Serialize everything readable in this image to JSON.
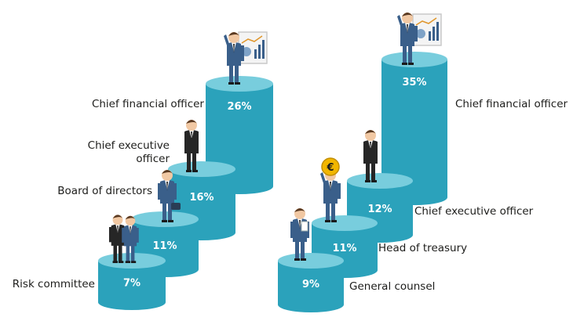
{
  "chart_data": [
    {
      "type": "bar",
      "categories": [
        "Risk committee",
        "Board of directors",
        "Chief executive officer",
        "Chief financial officer"
      ],
      "values": [
        7,
        11,
        16,
        26
      ],
      "data_labels": [
        "7%",
        "11%",
        "16%",
        "26%"
      ],
      "category_labels": [
        "Risk committee",
        "Board of directors",
        "Chief executive\nofficer",
        "Chief financial officer"
      ]
    },
    {
      "type": "bar",
      "categories": [
        "General counsel",
        "Head of treasury",
        "Chief executive officer",
        "Chief financial officer"
      ],
      "values": [
        9,
        11,
        12,
        35
      ],
      "data_labels": [
        "9%",
        "11%",
        "12%",
        "35%"
      ],
      "category_labels": [
        "General counsel",
        "Head of treasury",
        "Chief executive officer",
        "Chief financial officer"
      ]
    }
  ],
  "colors": {
    "cylinder_side": "#2ba2bb",
    "cylinder_top": "#78cddd",
    "label_text": "#1d1d1b",
    "value_text": "#ffffff",
    "suit": "#3a5f8a",
    "suit_dark": "#262626",
    "coin": "#f2b600"
  },
  "icons": [
    "presenter-with-chart-icon",
    "businessman-arms-crossed-icon",
    "businessman-with-bag-icon",
    "business-group-icon",
    "businessman-holding-euro-coin-icon",
    "businessman-with-folder-icon"
  ]
}
